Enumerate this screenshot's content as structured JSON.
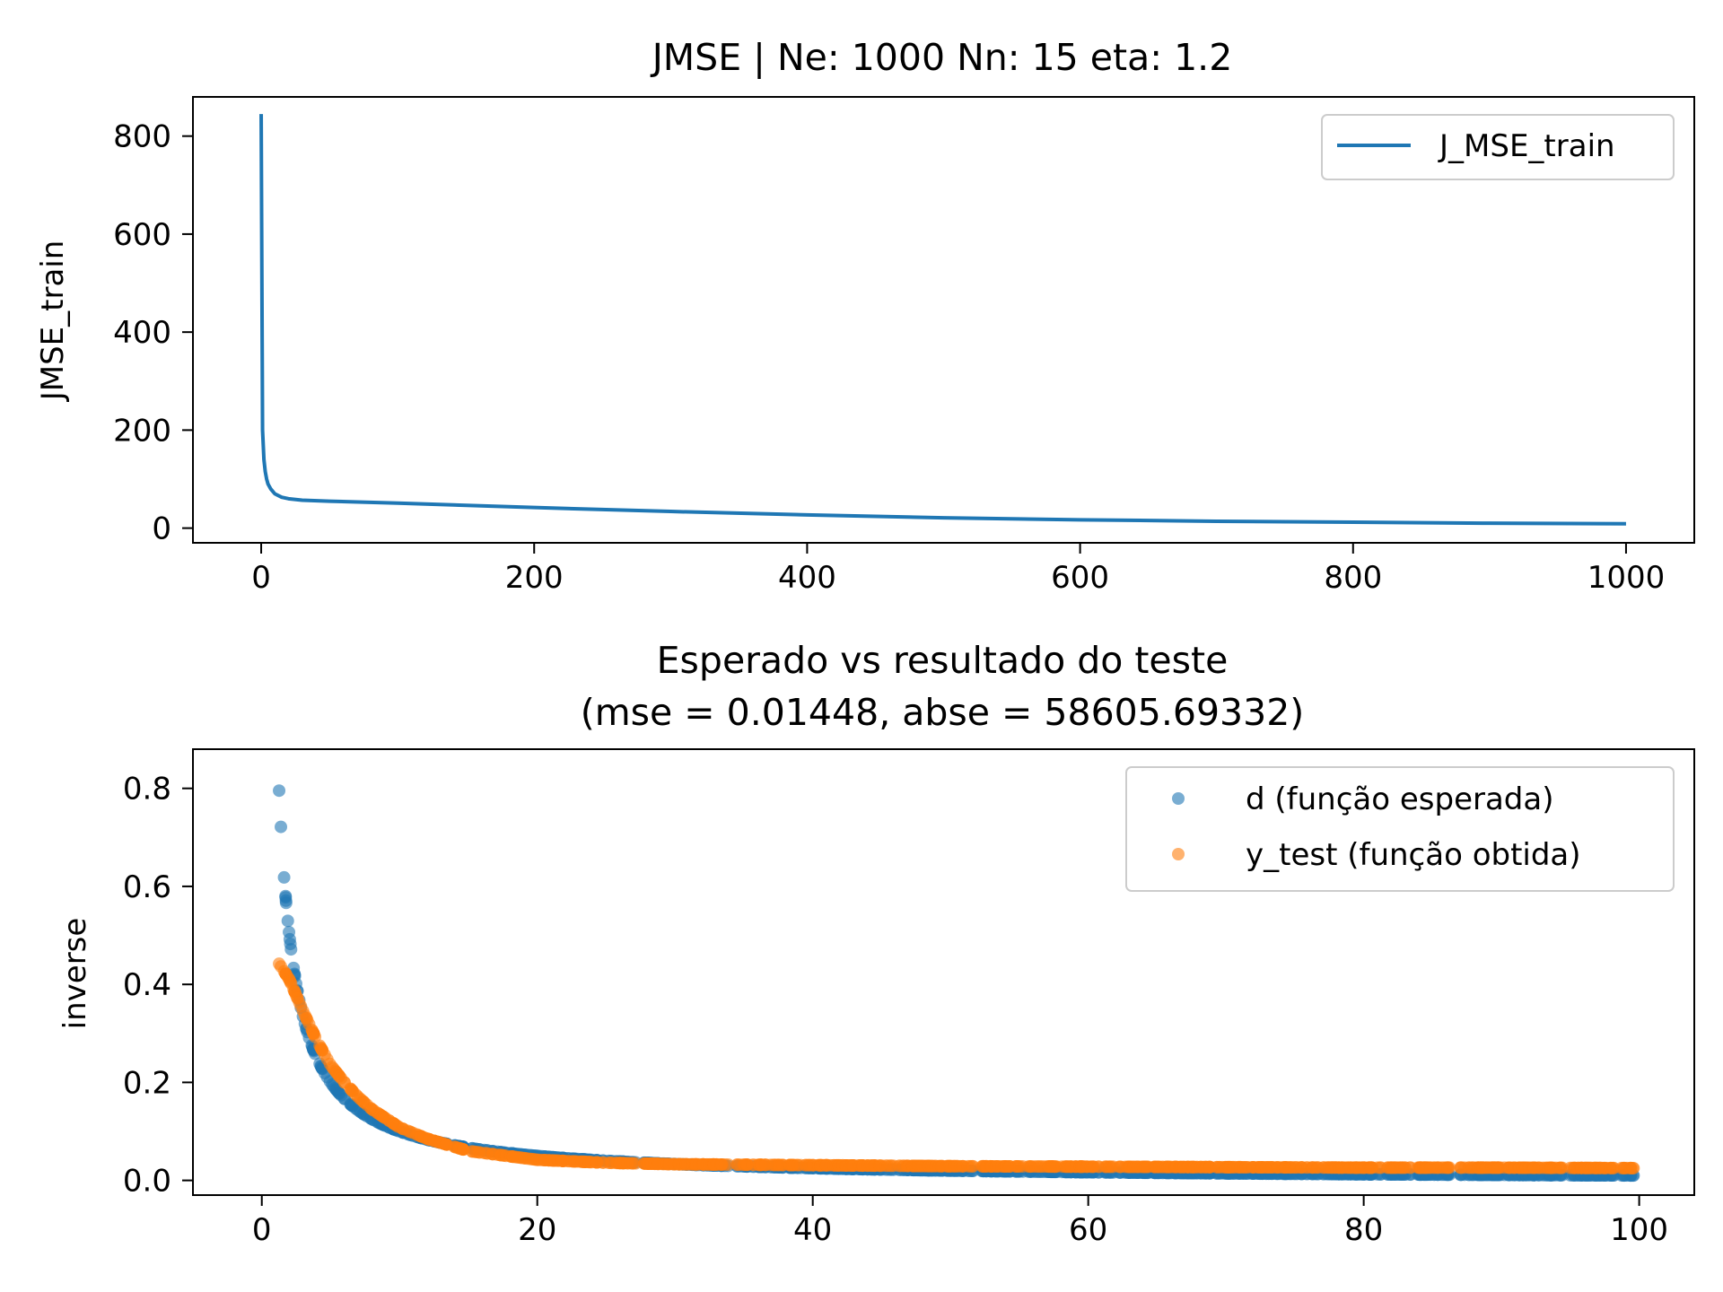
{
  "chart_data": [
    {
      "type": "line",
      "title": "JMSE | Ne: 1000 Nn: 15 eta: 1.2",
      "xlabel": "",
      "ylabel": "JMSE_train",
      "xlim": [
        -50,
        1050
      ],
      "ylim": [
        -30,
        880
      ],
      "xticks": [
        0,
        200,
        400,
        600,
        800,
        1000
      ],
      "yticks": [
        0,
        200,
        400,
        600,
        800
      ],
      "grid": false,
      "legend": "upper right",
      "series": [
        {
          "name": "J_MSE_train",
          "color": "#1f77b4",
          "x": [
            0,
            1,
            2,
            3,
            4,
            5,
            7,
            10,
            15,
            20,
            30,
            50,
            100,
            200,
            300,
            400,
            500,
            600,
            700,
            800,
            900,
            1000
          ],
          "y": [
            845,
            200,
            140,
            115,
            100,
            90,
            80,
            70,
            63,
            60,
            57,
            55,
            51,
            42,
            34,
            27,
            21,
            17,
            14,
            12,
            10,
            9
          ]
        }
      ]
    },
    {
      "type": "scatter",
      "title": "Esperado vs resultado do teste\n(mse = 0.01448, abse = 58605.69332)",
      "title_lines": [
        "Esperado vs resultado do teste",
        "(mse = 0.01448, abse = 58605.69332)"
      ],
      "xlabel": "",
      "ylabel": "inverse",
      "xlim": [
        -5,
        104
      ],
      "ylim": [
        -0.03,
        0.88
      ],
      "xticks": [
        0,
        20,
        40,
        60,
        80,
        100
      ],
      "yticks": [
        0.0,
        0.2,
        0.4,
        0.6,
        0.8
      ],
      "ytick_labels": [
        "0.0",
        "0.2",
        "0.4",
        "0.6",
        "0.8"
      ],
      "grid": false,
      "legend": "upper right",
      "series": [
        {
          "name": "d (função esperada)",
          "color": "#1f77b4",
          "function": "1/x",
          "x_range": [
            1.19,
            99.8
          ]
        },
        {
          "name": "y_test (função obtida)",
          "color": "#ff7f0e",
          "x_range": [
            1.19,
            99.8
          ],
          "x": [
            1.19,
            2,
            3,
            4,
            5,
            6,
            7,
            8,
            10,
            12,
            15,
            20,
            25,
            30,
            40,
            50,
            60,
            70,
            80,
            90,
            100
          ],
          "y": [
            0.445,
            0.41,
            0.345,
            0.285,
            0.235,
            0.2,
            0.17,
            0.145,
            0.108,
            0.085,
            0.06,
            0.042,
            0.036,
            0.033,
            0.031,
            0.029,
            0.028,
            0.027,
            0.026,
            0.026,
            0.025
          ]
        }
      ]
    }
  ]
}
